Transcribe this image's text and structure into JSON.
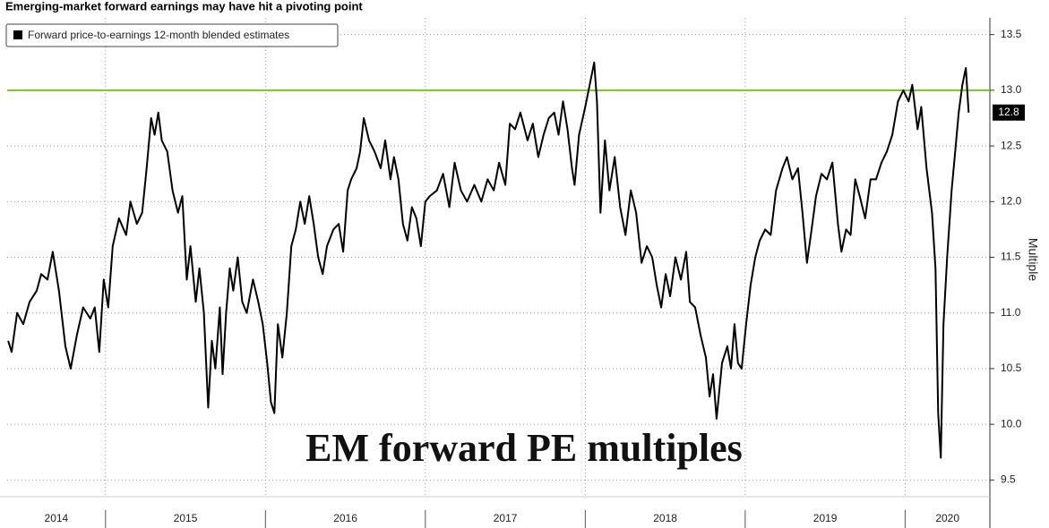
{
  "chart_data": {
    "type": "line",
    "title": "Emerging-market forward earnings may have hit a pivoting point",
    "annotation": "EM forward PE multiples",
    "y_label": "Multiple",
    "categories": [
      "2014",
      "2015",
      "2016",
      "2017",
      "2018",
      "2019",
      "2020"
    ],
    "xticks": [
      2015,
      2016,
      2017,
      2018,
      2019,
      2020
    ],
    "xlim": [
      2014.385,
      2020.53
    ],
    "ylim": [
      9.35,
      13.65
    ],
    "yticks": [
      9.5,
      {
        "value": 10,
        "label": "10.0"
      },
      10.5,
      {
        "value": 11,
        "label": "11.0"
      },
      11.5,
      {
        "value": 12,
        "label": "12.0"
      },
      12.5,
      {
        "value": 13,
        "label": "13.0"
      },
      13.5
    ],
    "grid": true,
    "legend": "top-left",
    "reference_line": {
      "value": 13,
      "color": "#7cc520"
    },
    "x": [
      2014.391,
      2014.413,
      2014.447,
      2014.486,
      2014.525,
      2014.57,
      2014.598,
      2014.637,
      2014.67,
      2014.709,
      2014.749,
      2014.782,
      2014.821,
      2014.86,
      2014.905,
      2014.933,
      2014.961,
      2014.989,
      2015.017,
      2015.045,
      2015.084,
      2015.129,
      2015.156,
      2015.196,
      2015.229,
      2015.257,
      2015.285,
      2015.307,
      2015.33,
      2015.352,
      2015.386,
      2015.419,
      2015.453,
      2015.48,
      2015.508,
      2015.531,
      2015.564,
      2015.587,
      2015.615,
      2015.642,
      2015.665,
      2015.687,
      2015.715,
      2015.732,
      2015.754,
      2015.777,
      2015.799,
      2015.827,
      2015.855,
      2015.883,
      2015.922,
      2015.955,
      2015.983,
      2016.011,
      2016.034,
      2016.056,
      2016.078,
      2016.106,
      2016.134,
      2016.162,
      2016.19,
      2016.218,
      2016.246,
      2016.274,
      2016.302,
      2016.33,
      2016.358,
      2016.385,
      2016.425,
      2016.458,
      2016.486,
      2016.514,
      2016.536,
      2016.57,
      2016.592,
      2016.615,
      2016.648,
      2016.682,
      2016.721,
      2016.749,
      2016.782,
      2016.804,
      2016.832,
      2016.86,
      2016.888,
      2016.916,
      2016.944,
      2016.972,
      2017.0,
      2017.028,
      2017.072,
      2017.111,
      2017.15,
      2017.183,
      2017.222,
      2017.261,
      2017.306,
      2017.35,
      2017.389,
      2017.428,
      2017.461,
      2017.5,
      2017.528,
      2017.561,
      2017.594,
      2017.639,
      2017.672,
      2017.706,
      2017.739,
      2017.772,
      2017.806,
      2017.833,
      2017.861,
      2017.889,
      2017.917,
      2017.933,
      2017.961,
      2018.0,
      2018.028,
      2018.056,
      2018.073,
      2018.095,
      2018.123,
      2018.151,
      2018.184,
      2018.218,
      2018.251,
      2018.285,
      2018.318,
      2018.352,
      2018.385,
      2018.419,
      2018.447,
      2018.475,
      2018.503,
      2018.531,
      2018.564,
      2018.598,
      2018.631,
      2018.654,
      2018.687,
      2018.721,
      2018.754,
      2018.777,
      2018.799,
      2018.821,
      2018.855,
      2018.888,
      2018.911,
      2018.933,
      2018.955,
      2018.978,
      2019.006,
      2019.034,
      2019.063,
      2019.091,
      2019.125,
      2019.159,
      2019.193,
      2019.233,
      2019.261,
      2019.295,
      2019.33,
      2019.358,
      2019.386,
      2019.415,
      2019.443,
      2019.477,
      2019.511,
      2019.545,
      2019.58,
      2019.602,
      2019.631,
      2019.659,
      2019.688,
      2019.716,
      2019.75,
      2019.784,
      2019.818,
      2019.852,
      2019.886,
      2019.92,
      2019.955,
      2019.989,
      2020.022,
      2020.045,
      2020.078,
      2020.101,
      2020.134,
      2020.168,
      2020.19,
      2020.207,
      2020.223,
      2020.24,
      2020.263,
      2020.291,
      2020.313,
      2020.335,
      2020.358,
      2020.38,
      2020.397
    ],
    "series": [
      {
        "name": "Forward price-to-earnings 12-month blended estimates",
        "color": "#000000",
        "values": [
          10.75,
          10.65,
          11.0,
          10.9,
          11.1,
          11.2,
          11.35,
          11.3,
          11.55,
          11.2,
          10.7,
          10.5,
          10.8,
          11.05,
          10.95,
          11.05,
          10.65,
          11.3,
          11.05,
          11.6,
          11.85,
          11.7,
          12.0,
          11.8,
          11.9,
          12.3,
          12.75,
          12.6,
          12.8,
          12.55,
          12.45,
          12.1,
          11.9,
          12.05,
          11.3,
          11.6,
          11.1,
          11.4,
          11.0,
          10.15,
          10.75,
          10.5,
          11.05,
          10.45,
          11.0,
          11.4,
          11.2,
          11.5,
          11.1,
          11.0,
          11.3,
          11.1,
          10.9,
          10.55,
          10.2,
          10.1,
          10.9,
          10.6,
          11.0,
          11.6,
          11.75,
          12.0,
          11.8,
          12.05,
          11.8,
          11.5,
          11.35,
          11.6,
          11.75,
          11.8,
          11.55,
          12.1,
          12.2,
          12.3,
          12.45,
          12.75,
          12.55,
          12.45,
          12.3,
          12.55,
          12.2,
          12.4,
          12.2,
          11.8,
          11.65,
          11.95,
          11.85,
          11.6,
          12.0,
          12.05,
          12.1,
          12.25,
          11.95,
          12.35,
          12.1,
          12.0,
          12.15,
          12.0,
          12.2,
          12.1,
          12.35,
          12.15,
          12.7,
          12.65,
          12.8,
          12.55,
          12.7,
          12.4,
          12.6,
          12.75,
          12.8,
          12.6,
          12.9,
          12.65,
          12.3,
          12.15,
          12.6,
          12.85,
          13.05,
          13.25,
          12.9,
          11.9,
          12.55,
          12.1,
          12.4,
          11.95,
          11.7,
          12.1,
          11.9,
          11.45,
          11.6,
          11.5,
          11.25,
          11.05,
          11.35,
          11.15,
          11.5,
          11.3,
          11.55,
          11.1,
          11.05,
          10.8,
          10.6,
          10.25,
          10.45,
          10.05,
          10.55,
          10.7,
          10.5,
          10.9,
          10.55,
          10.5,
          10.9,
          11.25,
          11.5,
          11.65,
          11.75,
          11.7,
          12.1,
          12.3,
          12.4,
          12.2,
          12.3,
          11.9,
          11.45,
          11.75,
          12.05,
          12.25,
          12.2,
          12.35,
          11.8,
          11.55,
          11.75,
          11.7,
          12.2,
          12.05,
          11.85,
          12.2,
          12.2,
          12.35,
          12.45,
          12.6,
          12.9,
          13.0,
          12.9,
          13.05,
          12.65,
          12.85,
          12.3,
          11.9,
          11.4,
          10.1,
          9.7,
          10.9,
          11.5,
          12.1,
          12.45,
          12.8,
          13.05,
          13.2,
          12.8
        ]
      }
    ]
  }
}
